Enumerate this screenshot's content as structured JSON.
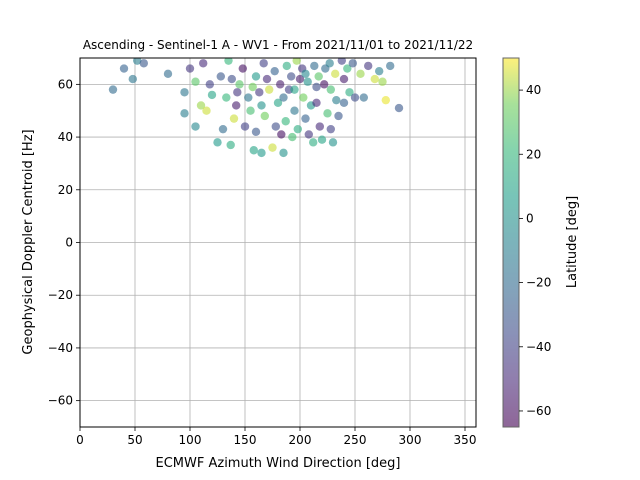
{
  "chart_data": {
    "type": "scatter",
    "title": "Ascending - Sentinel-1 A - WV1 - From 2021/11/01 to 2021/11/22",
    "xlabel": "ECMWF Azimuth Wind Direction [deg]",
    "ylabel": "Geophysical Doppler Centroid [Hz]",
    "xlim": [
      0,
      360
    ],
    "ylim": [
      -70,
      70
    ],
    "xticks": [
      "0",
      "50",
      "100",
      "150",
      "200",
      "250",
      "300",
      "350"
    ],
    "yticks": [
      "−60",
      "−40",
      "−20",
      "0",
      "20",
      "40",
      "60"
    ],
    "grid": true,
    "colorbar": {
      "label": "Latitude [deg]",
      "range": [
        -65,
        50
      ],
      "ticks": [
        "−60",
        "−40",
        "−20",
        "0",
        "20",
        "40"
      ],
      "colormap": "viridis"
    },
    "points": [
      {
        "x": 30,
        "y": 58,
        "c": -20
      },
      {
        "x": 40,
        "y": 66,
        "c": -25
      },
      {
        "x": 48,
        "y": 62,
        "c": -15
      },
      {
        "x": 52,
        "y": 69,
        "c": -10
      },
      {
        "x": 58,
        "y": 68,
        "c": -30
      },
      {
        "x": 80,
        "y": 64,
        "c": -20
      },
      {
        "x": 95,
        "y": 57,
        "c": -15
      },
      {
        "x": 95,
        "y": 49,
        "c": -10
      },
      {
        "x": 105,
        "y": 44,
        "c": -5
      },
      {
        "x": 110,
        "y": 52,
        "c": 40
      },
      {
        "x": 115,
        "y": 50,
        "c": 45
      },
      {
        "x": 118,
        "y": 60,
        "c": -40
      },
      {
        "x": 125,
        "y": 38,
        "c": 5
      },
      {
        "x": 130,
        "y": 43,
        "c": -20
      },
      {
        "x": 133,
        "y": 55,
        "c": 20
      },
      {
        "x": 137,
        "y": 37,
        "c": 15
      },
      {
        "x": 140,
        "y": 47,
        "c": 45
      },
      {
        "x": 142,
        "y": 52,
        "c": -55
      },
      {
        "x": 145,
        "y": 60,
        "c": 30
      },
      {
        "x": 150,
        "y": 44,
        "c": -40
      },
      {
        "x": 155,
        "y": 50,
        "c": 25
      },
      {
        "x": 158,
        "y": 35,
        "c": 10
      },
      {
        "x": 160,
        "y": 42,
        "c": -30
      },
      {
        "x": 163,
        "y": 57,
        "c": -45
      },
      {
        "x": 165,
        "y": 34,
        "c": 5
      },
      {
        "x": 168,
        "y": 48,
        "c": 35
      },
      {
        "x": 170,
        "y": 62,
        "c": -50
      },
      {
        "x": 175,
        "y": 36,
        "c": 45
      },
      {
        "x": 178,
        "y": 44,
        "c": -35
      },
      {
        "x": 180,
        "y": 53,
        "c": 10
      },
      {
        "x": 183,
        "y": 41,
        "c": -60
      },
      {
        "x": 185,
        "y": 34,
        "c": 0
      },
      {
        "x": 187,
        "y": 46,
        "c": 20
      },
      {
        "x": 190,
        "y": 58,
        "c": -40
      },
      {
        "x": 193,
        "y": 40,
        "c": 25
      },
      {
        "x": 195,
        "y": 50,
        "c": -15
      },
      {
        "x": 198,
        "y": 43,
        "c": 15
      },
      {
        "x": 200,
        "y": 62,
        "c": -55
      },
      {
        "x": 203,
        "y": 55,
        "c": 35
      },
      {
        "x": 205,
        "y": 47,
        "c": -25
      },
      {
        "x": 208,
        "y": 41,
        "c": -45
      },
      {
        "x": 210,
        "y": 52,
        "c": 5
      },
      {
        "x": 212,
        "y": 38,
        "c": 15
      },
      {
        "x": 215,
        "y": 59,
        "c": -35
      },
      {
        "x": 218,
        "y": 44,
        "c": -50
      },
      {
        "x": 220,
        "y": 39,
        "c": 10
      },
      {
        "x": 223,
        "y": 66,
        "c": -20
      },
      {
        "x": 225,
        "y": 49,
        "c": 25
      },
      {
        "x": 228,
        "y": 43,
        "c": -40
      },
      {
        "x": 230,
        "y": 38,
        "c": 0
      },
      {
        "x": 233,
        "y": 54,
        "c": -10
      },
      {
        "x": 235,
        "y": 48,
        "c": -30
      },
      {
        "x": 240,
        "y": 62,
        "c": -55
      },
      {
        "x": 245,
        "y": 57,
        "c": 15
      },
      {
        "x": 250,
        "y": 55,
        "c": -35
      },
      {
        "x": 255,
        "y": 64,
        "c": 40
      },
      {
        "x": 258,
        "y": 55,
        "c": -20
      },
      {
        "x": 262,
        "y": 67,
        "c": -45
      },
      {
        "x": 268,
        "y": 62,
        "c": 45
      },
      {
        "x": 272,
        "y": 65,
        "c": -10
      },
      {
        "x": 275,
        "y": 61,
        "c": 40
      },
      {
        "x": 278,
        "y": 54,
        "c": 48
      },
      {
        "x": 282,
        "y": 67,
        "c": -20
      },
      {
        "x": 290,
        "y": 51,
        "c": -30
      },
      {
        "x": 100,
        "y": 66,
        "c": -45
      },
      {
        "x": 105,
        "y": 61,
        "c": 30
      },
      {
        "x": 112,
        "y": 68,
        "c": -50
      },
      {
        "x": 120,
        "y": 56,
        "c": 10
      },
      {
        "x": 128,
        "y": 63,
        "c": -30
      },
      {
        "x": 135,
        "y": 69,
        "c": 20
      },
      {
        "x": 148,
        "y": 66,
        "c": -60
      },
      {
        "x": 153,
        "y": 55,
        "c": -15
      },
      {
        "x": 160,
        "y": 63,
        "c": 5
      },
      {
        "x": 167,
        "y": 68,
        "c": -40
      },
      {
        "x": 172,
        "y": 58,
        "c": 45
      },
      {
        "x": 177,
        "y": 65,
        "c": -25
      },
      {
        "x": 182,
        "y": 60,
        "c": -55
      },
      {
        "x": 188,
        "y": 67,
        "c": 15
      },
      {
        "x": 192,
        "y": 63,
        "c": -35
      },
      {
        "x": 197,
        "y": 69,
        "c": 40
      },
      {
        "x": 202,
        "y": 66,
        "c": -45
      },
      {
        "x": 207,
        "y": 61,
        "c": 0
      },
      {
        "x": 213,
        "y": 67,
        "c": -20
      },
      {
        "x": 217,
        "y": 63,
        "c": 30
      },
      {
        "x": 222,
        "y": 60,
        "c": -60
      },
      {
        "x": 227,
        "y": 68,
        "c": -10
      },
      {
        "x": 232,
        "y": 64,
        "c": 45
      },
      {
        "x": 238,
        "y": 69,
        "c": -40
      },
      {
        "x": 243,
        "y": 66,
        "c": 20
      },
      {
        "x": 248,
        "y": 68,
        "c": -30
      },
      {
        "x": 143,
        "y": 57,
        "c": -45
      },
      {
        "x": 157,
        "y": 59,
        "c": 35
      },
      {
        "x": 185,
        "y": 55,
        "c": -20
      },
      {
        "x": 195,
        "y": 58,
        "c": 10
      },
      {
        "x": 215,
        "y": 53,
        "c": -50
      },
      {
        "x": 228,
        "y": 58,
        "c": 25
      },
      {
        "x": 138,
        "y": 62,
        "c": -35
      },
      {
        "x": 165,
        "y": 52,
        "c": 0
      },
      {
        "x": 205,
        "y": 64,
        "c": -5
      },
      {
        "x": 240,
        "y": 53,
        "c": -25
      }
    ]
  }
}
